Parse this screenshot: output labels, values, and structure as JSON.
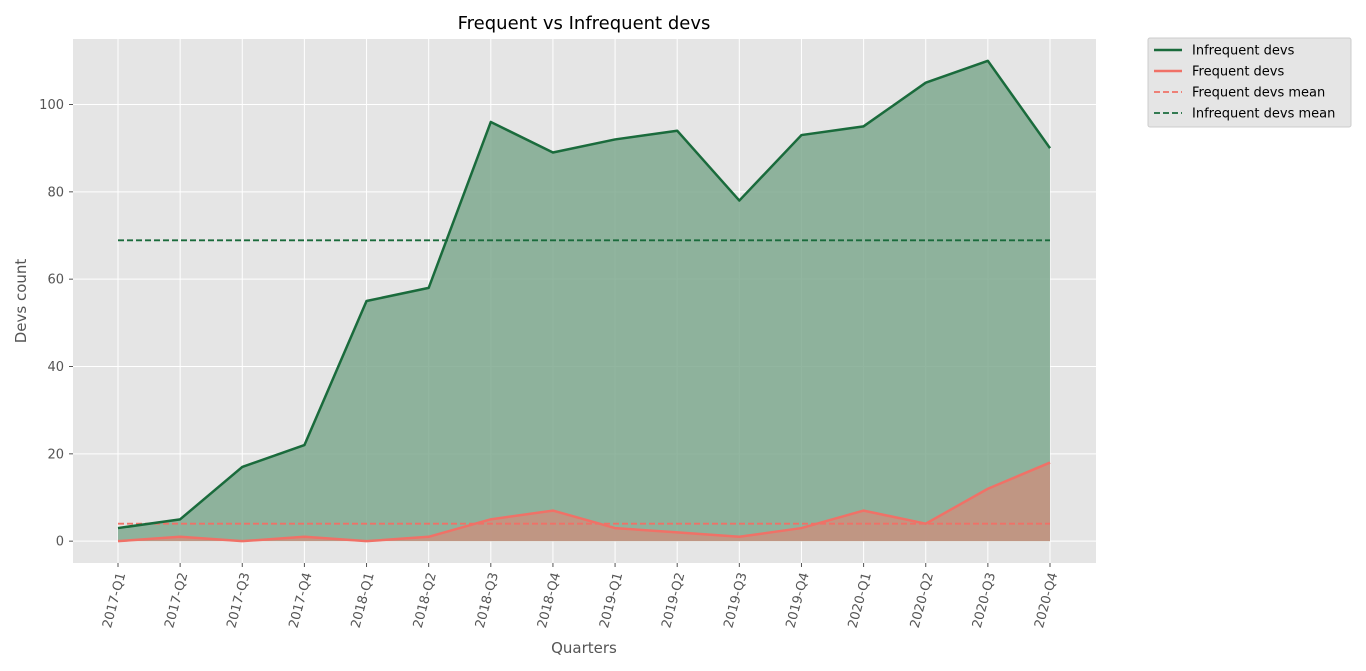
{
  "chart_data": {
    "type": "area",
    "title": "Frequent vs Infrequent devs",
    "xlabel": "Quarters",
    "ylabel": "Devs count",
    "ylim": [
      -5,
      115
    ],
    "yticks": [
      0,
      20,
      40,
      60,
      80,
      100
    ],
    "grid": true,
    "legend_position": "outside-top-right",
    "categories": [
      "2017-Q1",
      "2017-Q2",
      "2017-Q3",
      "2017-Q4",
      "2018-Q1",
      "2018-Q2",
      "2018-Q3",
      "2018-Q4",
      "2019-Q1",
      "2019-Q2",
      "2019-Q3",
      "2019-Q4",
      "2020-Q1",
      "2020-Q2",
      "2020-Q3",
      "2020-Q4"
    ],
    "series": [
      {
        "name": "Infrequent devs",
        "color": "#1a6b3c",
        "fill": "#7fa98f",
        "values": [
          3,
          5,
          17,
          22,
          55,
          58,
          96,
          89,
          92,
          94,
          78,
          93,
          95,
          105,
          110,
          90
        ]
      },
      {
        "name": "Frequent devs",
        "color": "#f07167",
        "fill": "#c9907f",
        "values": [
          0,
          1,
          0,
          1,
          0,
          1,
          5,
          7,
          3,
          2,
          1,
          3,
          7,
          4,
          12,
          18
        ]
      }
    ],
    "reference_lines": [
      {
        "name": "Frequent devs mean",
        "color": "#f07167",
        "value": 4
      },
      {
        "name": "Infrequent devs mean",
        "color": "#1a6b3c",
        "value": 68.9
      }
    ],
    "legend": [
      "Infrequent devs",
      "Frequent devs",
      "Frequent devs mean",
      "Infrequent devs mean"
    ]
  }
}
